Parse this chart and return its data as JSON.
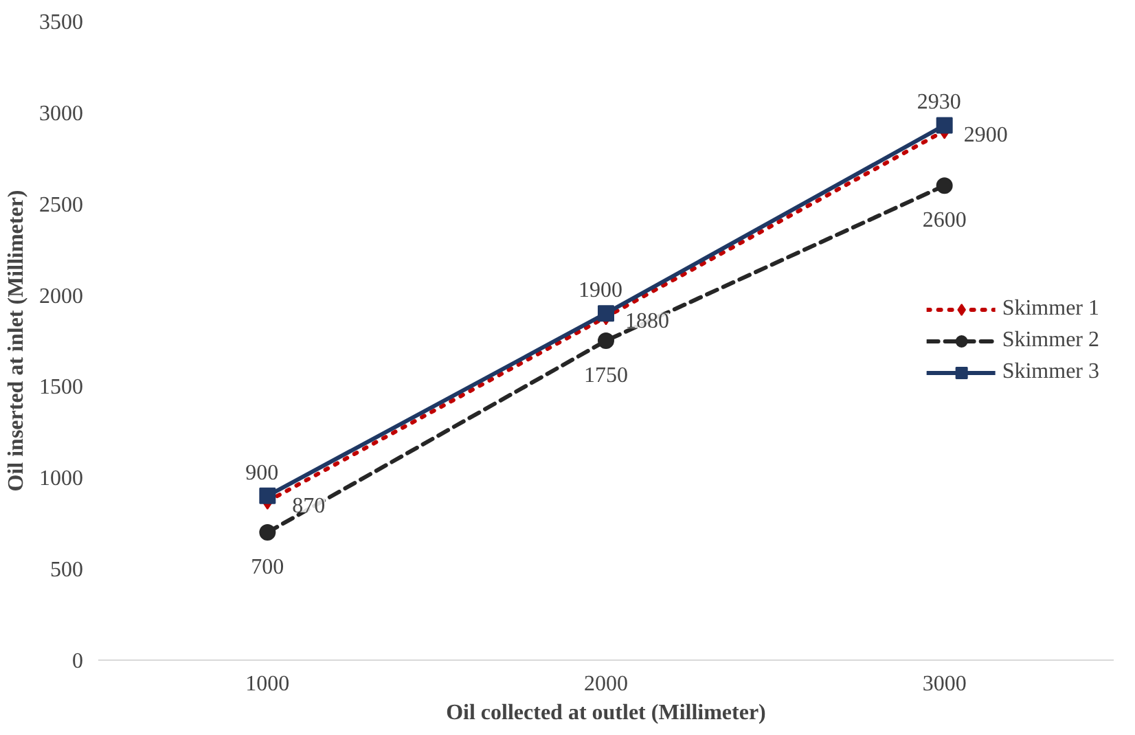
{
  "chart_data": {
    "type": "line",
    "xlabel": "Oil collected at outlet (Millimeter)",
    "ylabel": "Oil inserted at inlet (Millimeter)",
    "categories": [
      "1000",
      "2000",
      "3000"
    ],
    "ylim": [
      0,
      3500
    ],
    "yticks": [
      0,
      500,
      1000,
      1500,
      2000,
      2500,
      3000,
      3500
    ],
    "grid": false,
    "legend": "right",
    "data_labels": true,
    "series": [
      {
        "name": "Skimmer 1",
        "color": "#c00000",
        "marker": "diamond",
        "line_style": "dotted",
        "values": [
          870,
          1880,
          2900
        ]
      },
      {
        "name": "Skimmer 2",
        "color": "#262626",
        "marker": "circle",
        "line_style": "dashed",
        "values": [
          700,
          1750,
          2600
        ]
      },
      {
        "name": "Skimmer 3",
        "color": "#1f3864",
        "marker": "square",
        "line_style": "solid",
        "values": [
          900,
          1900,
          2930
        ]
      }
    ]
  }
}
